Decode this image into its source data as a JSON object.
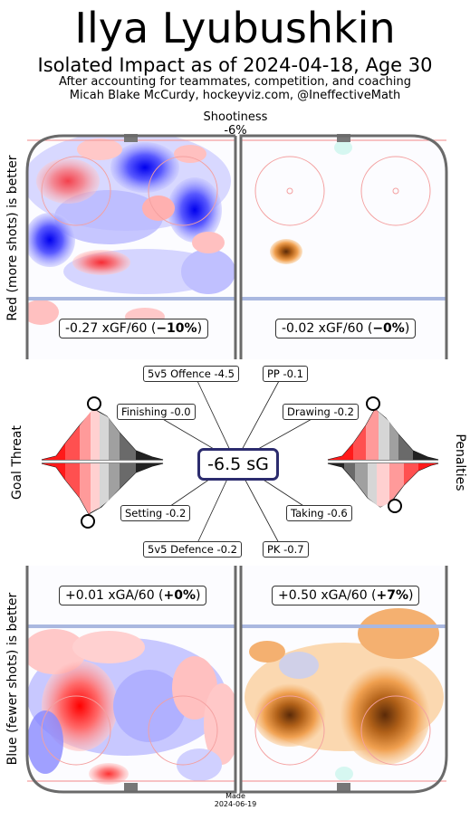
{
  "header": {
    "title": "Ilya Lyubushkin",
    "subtitle": "Isolated Impact as of 2024-04-18, Age 30",
    "credit_line1": "After accounting for teammates, competition, and coaching",
    "credit_line2": "Micah Blake McCurdy, hockeyviz.com, @IneffectiveMath"
  },
  "shootiness": {
    "label": "Shootiness",
    "value": "-6%"
  },
  "side_labels": {
    "top_left": "Red (more shots) is better",
    "bottom_left": "Blue (fewer shots) is better",
    "mid_left": "Goal Threat",
    "mid_right": "Penalties"
  },
  "colors": {
    "more_shots": "#ff2a2a",
    "fewer_shots": "#2a2aff",
    "pp_shots": "#f0a050",
    "pk_shots": "#a05010",
    "sg_border": "#2c2c6e",
    "rink_boards": "#707070",
    "blue_line": "#aab8e0",
    "goal_line": "#f4a0a0"
  },
  "chart_data": [
    {
      "type": "heatmap",
      "panel": "5v5 offence",
      "stat_prefix": "-0.27 xGF/60 (",
      "stat_bold": "−10%",
      "stat_suffix": ")",
      "xgf60": -0.27,
      "pct": -10
    },
    {
      "type": "heatmap",
      "panel": "PP offence",
      "stat_prefix": "-0.02 xGF/60 (",
      "stat_bold": "−0%",
      "stat_suffix": ")",
      "xgf60": -0.02,
      "pct": 0
    },
    {
      "type": "heatmap",
      "panel": "5v5 defence",
      "stat_prefix": "+0.01 xGA/60 (",
      "stat_bold": "+0%",
      "stat_suffix": ")",
      "xga60": 0.01,
      "pct": 0
    },
    {
      "type": "heatmap",
      "panel": "PK defence",
      "stat_prefix": "+0.50 xGA/60 (",
      "stat_bold": "+7%",
      "stat_suffix": ")",
      "xga60": 0.5,
      "pct": 7
    },
    {
      "type": "radial",
      "total_label": "-6.5 sG",
      "total": -6.5,
      "components": [
        {
          "label": "5v5 Offence -4.5",
          "name": "5v5 Offence",
          "value": -4.5
        },
        {
          "label": "PP -0.1",
          "name": "PP",
          "value": -0.1
        },
        {
          "label": "Finishing -0.0",
          "name": "Finishing",
          "value": -0.0
        },
        {
          "label": "Drawing -0.2",
          "name": "Drawing",
          "value": -0.2
        },
        {
          "label": "Setting -0.2",
          "name": "Setting",
          "value": -0.2
        },
        {
          "label": "Taking -0.6",
          "name": "Taking",
          "value": -0.6
        },
        {
          "label": "5v5 Defence -0.2",
          "name": "5v5 Defence",
          "value": -0.2
        },
        {
          "label": "PK -0.7",
          "name": "PK",
          "value": -0.7
        }
      ]
    }
  ],
  "footer": {
    "made_label": "Made",
    "made_date": "2024-06-19"
  }
}
